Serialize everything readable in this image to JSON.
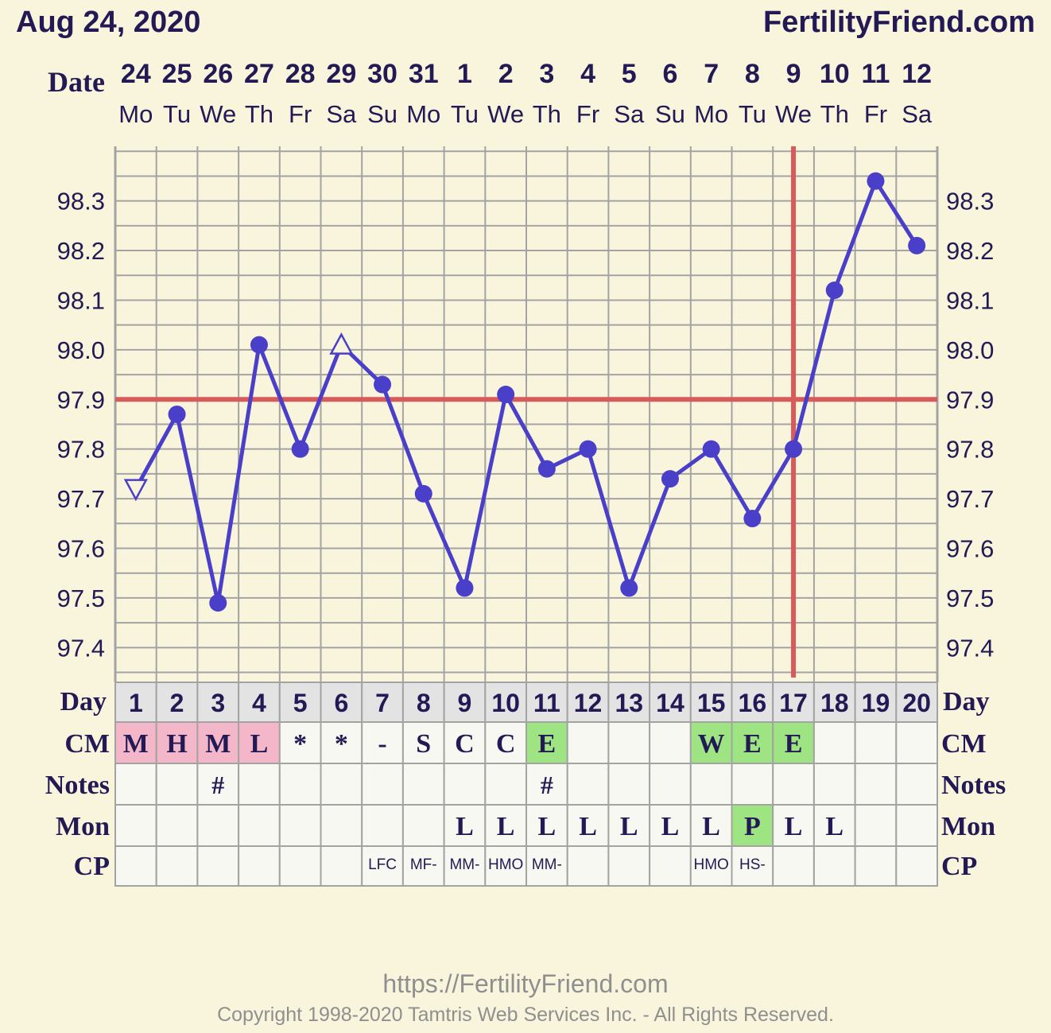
{
  "header": {
    "date_text": "Aug 24, 2020",
    "site_name": "FertilityFriend.com"
  },
  "footer": {
    "url": "https://FertilityFriend.com",
    "copyright": "Copyright 1998-2020 Tamtris Web Services Inc. - All Rights Reserved."
  },
  "colors": {
    "background": "#f9f5dc",
    "line": "#4a3fc8",
    "coverline": "#d95a5a",
    "grid": "#a3a3a3",
    "text": "#231a55",
    "cm_dry": "#f4b6c9",
    "cm_fertile": "#9ee482",
    "day_row": "#e3e3e3",
    "cell": "#f8f8f2"
  },
  "chart_data": {
    "type": "line",
    "row_labels": {
      "date": "Date",
      "day": "Day",
      "cm": "CM",
      "notes": "Notes",
      "mon": "Mon",
      "cp": "CP"
    },
    "dates": [
      "24",
      "25",
      "26",
      "27",
      "28",
      "29",
      "30",
      "31",
      "1",
      "2",
      "3",
      "4",
      "5",
      "6",
      "7",
      "8",
      "9",
      "10",
      "11",
      "12"
    ],
    "weekdays": [
      "Mo",
      "Tu",
      "We",
      "Th",
      "Fr",
      "Sa",
      "Su",
      "Mo",
      "Tu",
      "We",
      "Th",
      "Fr",
      "Sa",
      "Su",
      "Mo",
      "Tu",
      "We",
      "Th",
      "Fr",
      "Sa"
    ],
    "cycle_days": [
      "1",
      "2",
      "3",
      "4",
      "5",
      "6",
      "7",
      "8",
      "9",
      "10",
      "11",
      "12",
      "13",
      "14",
      "15",
      "16",
      "17",
      "18",
      "19",
      "20"
    ],
    "temperatures": [
      97.72,
      97.87,
      97.49,
      98.01,
      97.8,
      98.01,
      97.93,
      97.71,
      97.52,
      97.91,
      97.76,
      97.8,
      97.52,
      97.74,
      97.8,
      97.66,
      97.8,
      98.12,
      98.34,
      98.21
    ],
    "marker_types": [
      "open-triangle-down",
      "dot",
      "dot",
      "dot",
      "dot",
      "open-triangle-up",
      "dot",
      "dot",
      "dot",
      "dot",
      "dot",
      "dot",
      "dot",
      "dot",
      "dot",
      "dot",
      "dot",
      "dot",
      "dot",
      "dot"
    ],
    "y_ticks": [
      "98.3",
      "98.2",
      "98.1",
      "98.0",
      "97.9",
      "97.8",
      "97.7",
      "97.6",
      "97.5",
      "97.4"
    ],
    "y_range": [
      97.33,
      98.41
    ],
    "coverline": 97.9,
    "ovulation_day": 17,
    "cervical_mucus": [
      "M",
      "H",
      "M",
      "L",
      "*",
      "*",
      "-",
      "S",
      "C",
      "C",
      "E",
      "",
      "",
      "",
      "W",
      "E",
      "E",
      "",
      "",
      ""
    ],
    "cm_highlight": [
      "dry",
      "dry",
      "dry",
      "dry",
      "",
      "",
      "",
      "",
      "",
      "",
      "fertile",
      "",
      "",
      "",
      "fertile",
      "fertile",
      "fertile",
      "",
      "",
      ""
    ],
    "notes": [
      "",
      "",
      "#",
      "",
      "",
      "",
      "",
      "",
      "",
      "",
      "#",
      "",
      "",
      "",
      "",
      "",
      "",
      "",
      "",
      ""
    ],
    "monitor": [
      "",
      "",
      "",
      "",
      "",
      "",
      "",
      "",
      "L",
      "L",
      "L",
      "L",
      "L",
      "L",
      "L",
      "P",
      "L",
      "L",
      "",
      ""
    ],
    "monitor_highlight": [
      "",
      "",
      "",
      "",
      "",
      "",
      "",
      "",
      "",
      "",
      "",
      "",
      "",
      "",
      "",
      "fertile",
      "",
      "",
      "",
      ""
    ],
    "cervical_position": [
      "",
      "",
      "",
      "",
      "",
      "",
      "LFC",
      "MF-",
      "MM-",
      "HMO",
      "MM-",
      "",
      "",
      "",
      "HMO",
      "HS-",
      "",
      "",
      "",
      ""
    ],
    "grid": true
  }
}
